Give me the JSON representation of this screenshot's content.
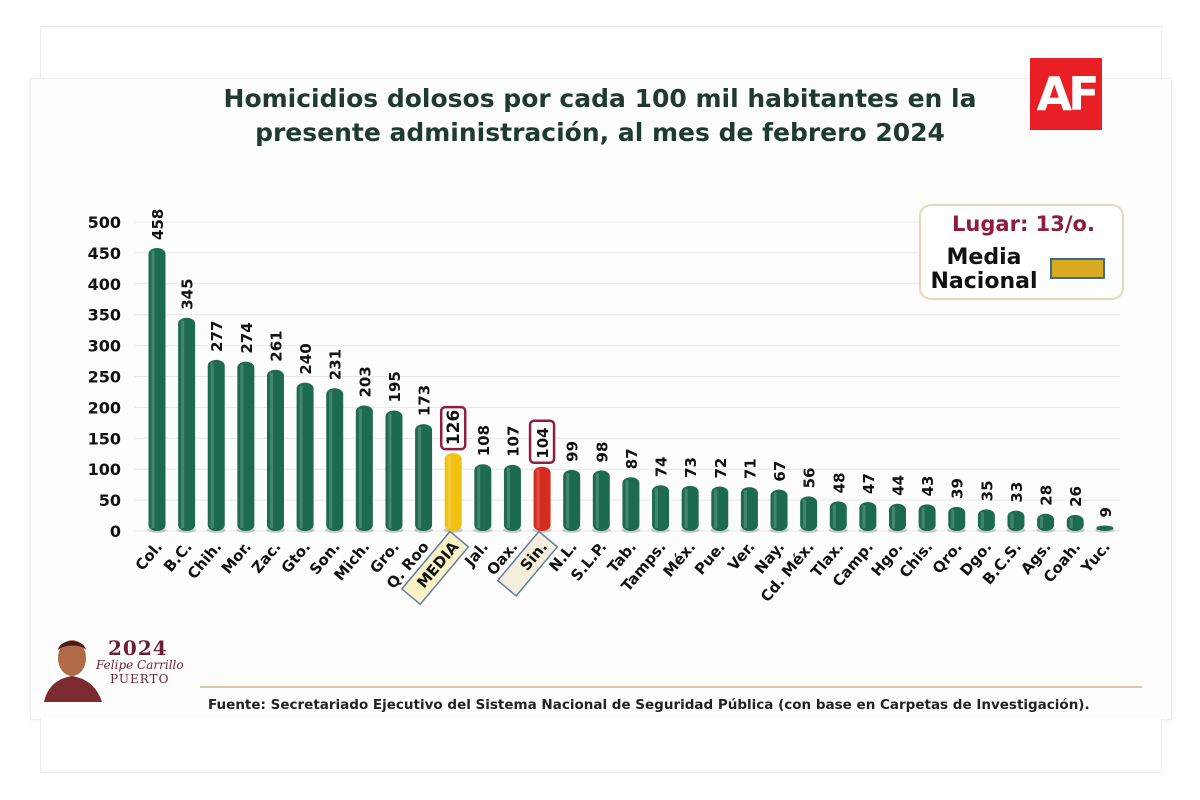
{
  "title": "Homicidios dolosos por cada 100 mil habitantes en la presente administración, al mes de febrero 2024",
  "logo": {
    "text_a": "A",
    "text_f": "F",
    "color": "#ea1f25"
  },
  "legend": {
    "lugar": "Lugar: 13/o.",
    "media_label_line1": "Media",
    "media_label_line2": "Nacional",
    "media_color": "#d9aa22"
  },
  "source": "Fuente:  Secretariado Ejecutivo del Sistema Nacional de Seguridad Pública (con base en Carpetas de Investigación).",
  "gov_logo": {
    "year": "2024",
    "name": "Felipe Carrillo",
    "name2": "PUERTO"
  },
  "colors": {
    "bar": "#1d6b4f",
    "media": "#f2c011",
    "highlight": "#d62b1f",
    "title": "#1f3b31",
    "callout_border": "#8f1d3f"
  },
  "chart_data": {
    "type": "bar",
    "title": "Homicidios dolosos por cada 100 mil habitantes en la presente administración, al mes de febrero 2024",
    "categories": [
      "Col.",
      "B.C.",
      "Chih.",
      "Mor.",
      "Zac.",
      "Gto.",
      "Son.",
      "Mich.",
      "Gro.",
      "Q. Roo",
      "MEDIA",
      "Jal.",
      "Oax.",
      "Sin.",
      "N.L.",
      "S.L.P.",
      "Tab.",
      "Tamps.",
      "Méx.",
      "Pue.",
      "Ver.",
      "Nay.",
      "Cd. Méx.",
      "Tlax.",
      "Camp.",
      "Hgo.",
      "Chis.",
      "Qro.",
      "Dgo.",
      "B.C.S.",
      "Ags.",
      "Coah.",
      "Yuc."
    ],
    "values": [
      458,
      345,
      277,
      274,
      261,
      240,
      231,
      203,
      195,
      173,
      126,
      108,
      107,
      104,
      99,
      98,
      87,
      74,
      73,
      72,
      71,
      67,
      56,
      48,
      47,
      44,
      43,
      39,
      35,
      33,
      28,
      26,
      9
    ],
    "highlighted": {
      "MEDIA": "media",
      "Sin.": "highlight"
    },
    "ylim": [
      0,
      500
    ],
    "yticks": [
      0,
      50,
      100,
      150,
      200,
      250,
      300,
      350,
      400,
      450,
      500
    ],
    "grid": true,
    "legend_position": "top-right"
  }
}
